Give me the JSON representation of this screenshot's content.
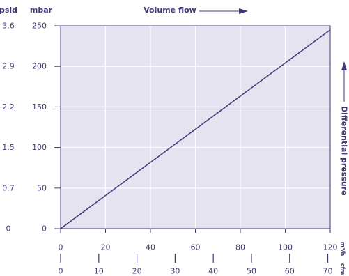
{
  "chart_data": {
    "type": "line",
    "top_label": "Volume flow",
    "right_label": "Differential pressure",
    "left_units": {
      "outer": "psid",
      "inner": "mbar"
    },
    "x_units": {
      "primary": "m³/h",
      "secondary": "cfm"
    },
    "x_range": [
      0,
      120
    ],
    "y_range": [
      0,
      250
    ],
    "x_ticks": [
      "0",
      "20",
      "40",
      "60",
      "80",
      "100",
      "120"
    ],
    "x_secondary_ticks": [
      "0",
      "10",
      "20",
      "30",
      "40",
      "50",
      "60",
      "70"
    ],
    "y_ticks_mbar": [
      "0",
      "50",
      "100",
      "150",
      "200",
      "250"
    ],
    "y_ticks_psid": [
      "0",
      "0.7",
      "1.5",
      "2.2",
      "2.9",
      "3.6"
    ],
    "grid": true,
    "series": [
      {
        "x": [
          0,
          120
        ],
        "y": [
          0,
          245
        ]
      }
    ],
    "colors": {
      "line": "#3c3a78",
      "plot_bg": "#e6e3f0",
      "grid": "#ffffff",
      "text": "#3c3a78"
    }
  }
}
